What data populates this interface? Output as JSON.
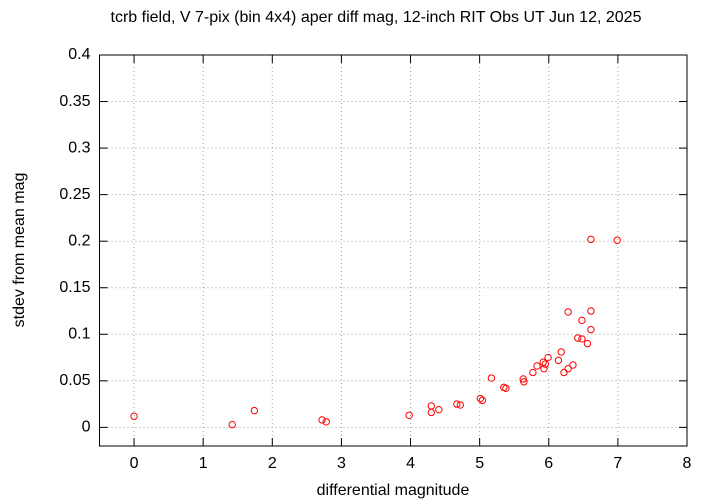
{
  "chart_data": {
    "type": "scatter",
    "title": "tcrb field, V 7-pix (bin 4x4) aper diff mag,  12-inch RIT Obs UT Jun 12, 2025",
    "x_label": "differential magnitude",
    "y_label": "stdev from mean mag",
    "xlim": [
      -0.5,
      8
    ],
    "ylim": [
      -0.02,
      0.4
    ],
    "xticks": [
      0,
      1,
      2,
      3,
      4,
      5,
      6,
      7,
      8
    ],
    "yticks": [
      0,
      0.05,
      0.1,
      0.15,
      0.2,
      0.25,
      0.3,
      0.35,
      0.4
    ],
    "grid": true,
    "series": [
      {
        "color": "#ff0000",
        "x": [
          0,
          1.42,
          1.74,
          2.72,
          2.78,
          3.98,
          4.3,
          4.3,
          4.41,
          4.67,
          4.72,
          5.01,
          5.04,
          5.17,
          5.35,
          5.38,
          5.63,
          5.64,
          5.77,
          5.83,
          5.92,
          5.93,
          5.95,
          5.99,
          6.14,
          6.18,
          6.22,
          6.28,
          6.28,
          6.35,
          6.42,
          6.48,
          6.48,
          6.56,
          6.61,
          6.61,
          6.61,
          6.99
        ],
        "values": [
          0.012,
          0.003,
          0.018,
          0.008,
          0.006,
          0.013,
          0.023,
          0.016,
          0.019,
          0.025,
          0.024,
          0.031,
          0.029,
          0.053,
          0.043,
          0.042,
          0.052,
          0.049,
          0.059,
          0.066,
          0.07,
          0.063,
          0.068,
          0.075,
          0.072,
          0.081,
          0.059,
          0.063,
          0.124,
          0.067,
          0.096,
          0.095,
          0.115,
          0.09,
          0.105,
          0.125,
          0.202,
          0.201
        ]
      }
    ]
  }
}
